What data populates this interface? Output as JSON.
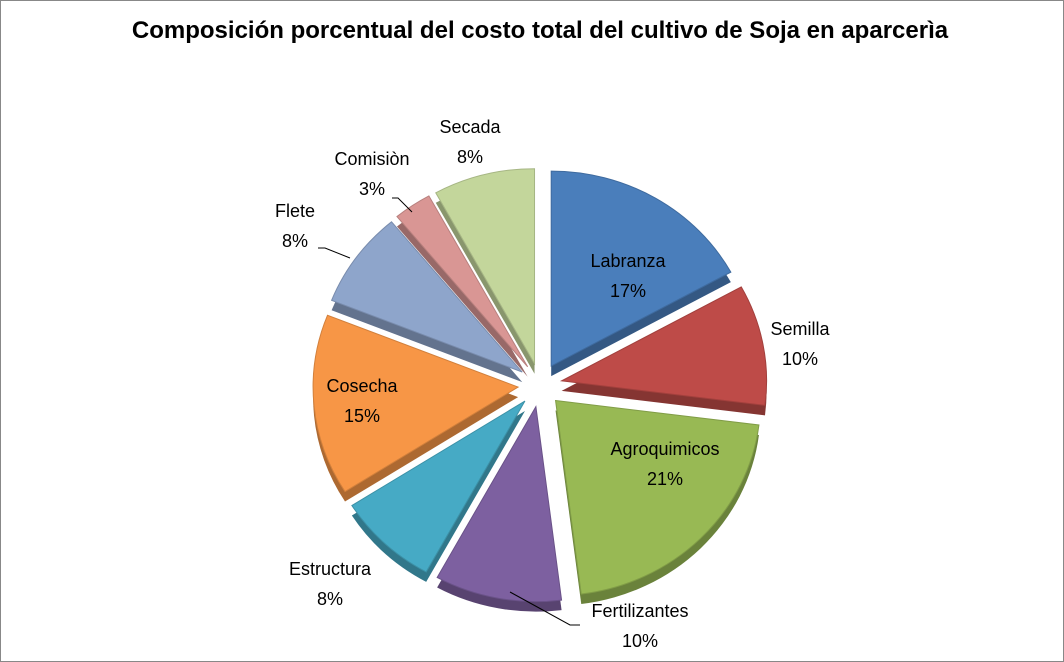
{
  "chart_data": {
    "type": "pie",
    "title": "Composición porcentual del costo total del cultivo de Soja en aparcerìa",
    "categories": [
      "Labranza",
      "Semilla",
      "Agroquimicos",
      "Fertilizantes",
      "Estructura",
      "Cosecha",
      "Flete",
      "Comisiòn",
      "Secada"
    ],
    "values": [
      17,
      10,
      21,
      10,
      8,
      15,
      8,
      3,
      8
    ],
    "value_labels": [
      "17%",
      "10%",
      "21%",
      "10%",
      "8%",
      "15%",
      "8%",
      "3%",
      "8%"
    ],
    "colors": [
      "#4a7ebb",
      "#be4b48",
      "#98b954",
      "#7d60a0",
      "#46aac5",
      "#f79646",
      "#8ea5cb",
      "#d99694",
      "#c3d69b"
    ]
  }
}
